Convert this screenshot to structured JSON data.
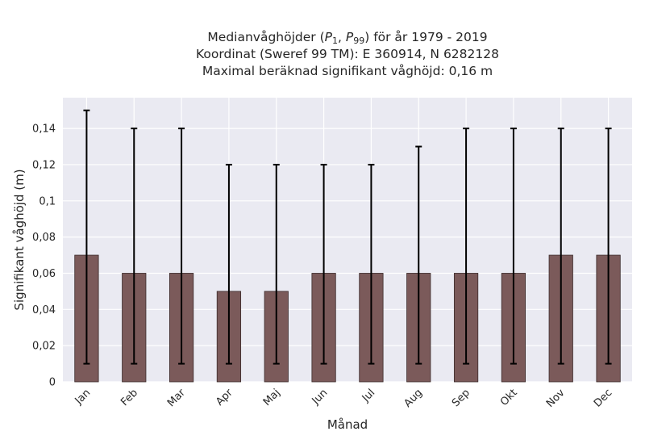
{
  "chart_data": {
    "type": "bar",
    "title_lines": [
      "Medianvåghöjder (P1, P99) för år 1979 - 2019",
      "Koordinat (Sweref 99 TM): E 360914, N 6282128",
      "Maximal beräknad signifikant våghöjd: 0,16 m"
    ],
    "xlabel": "Månad",
    "ylabel": "Signifikant våghöjd (m)",
    "categories": [
      "Jan",
      "Feb",
      "Mar",
      "Apr",
      "Maj",
      "Jun",
      "Jul",
      "Aug",
      "Sep",
      "Okt",
      "Nov",
      "Dec"
    ],
    "values": [
      0.07,
      0.06,
      0.06,
      0.05,
      0.05,
      0.06,
      0.06,
      0.06,
      0.06,
      0.06,
      0.07,
      0.07
    ],
    "p1": [
      0.01,
      0.01,
      0.01,
      0.01,
      0.01,
      0.01,
      0.01,
      0.01,
      0.01,
      0.01,
      0.01,
      0.01
    ],
    "p99": [
      0.15,
      0.14,
      0.14,
      0.12,
      0.12,
      0.12,
      0.12,
      0.13,
      0.14,
      0.14,
      0.14,
      0.14
    ],
    "yticks": [
      0,
      0.02,
      0.04,
      0.06,
      0.08,
      0.1,
      0.12,
      0.14
    ],
    "ytick_labels": [
      "0",
      "0,02",
      "0,04",
      "0,06",
      "0,08",
      "0,1",
      "0,12",
      "0,14"
    ],
    "ylim": [
      0,
      0.157
    ],
    "grid": true,
    "colors": {
      "bar": "#7b5a5a",
      "bar_edge": "#3a2a2a",
      "errorbar": "#000000",
      "plot_background": "#eaeaf2",
      "grid": "#ffffff"
    }
  }
}
